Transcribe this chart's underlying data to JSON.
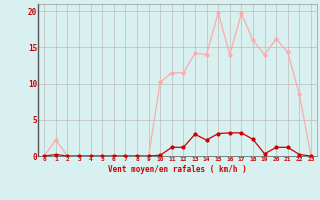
{
  "x": [
    0,
    1,
    2,
    3,
    4,
    5,
    6,
    7,
    8,
    9,
    10,
    11,
    12,
    13,
    14,
    15,
    16,
    17,
    18,
    19,
    20,
    21,
    22,
    23
  ],
  "rafales": [
    0,
    2.2,
    0,
    0,
    0,
    0,
    0,
    0,
    0,
    0,
    10.2,
    11.5,
    11.5,
    14.2,
    14.0,
    19.8,
    14.0,
    19.7,
    16.0,
    14.0,
    16.2,
    14.3,
    8.5,
    0
  ],
  "moyen": [
    0,
    0.2,
    0,
    0,
    0,
    0,
    0,
    0,
    0,
    0,
    0.1,
    1.2,
    1.2,
    3.0,
    2.2,
    3.1,
    3.2,
    3.2,
    2.3,
    0.3,
    1.2,
    1.2,
    0.2,
    0
  ],
  "color_rafales": "#ffaaaa",
  "color_moyen": "#cc0000",
  "bg_color": "#d8f0f0",
  "grid_color": "#bbbbbb",
  "xlabel": "Vent moyen/en rafales ( km/h )",
  "ylim": [
    0,
    21
  ],
  "yticks": [
    0,
    5,
    10,
    15,
    20
  ],
  "xlim": [
    -0.5,
    23.5
  ],
  "tick_color": "#cc0000",
  "label_color": "#cc0000"
}
